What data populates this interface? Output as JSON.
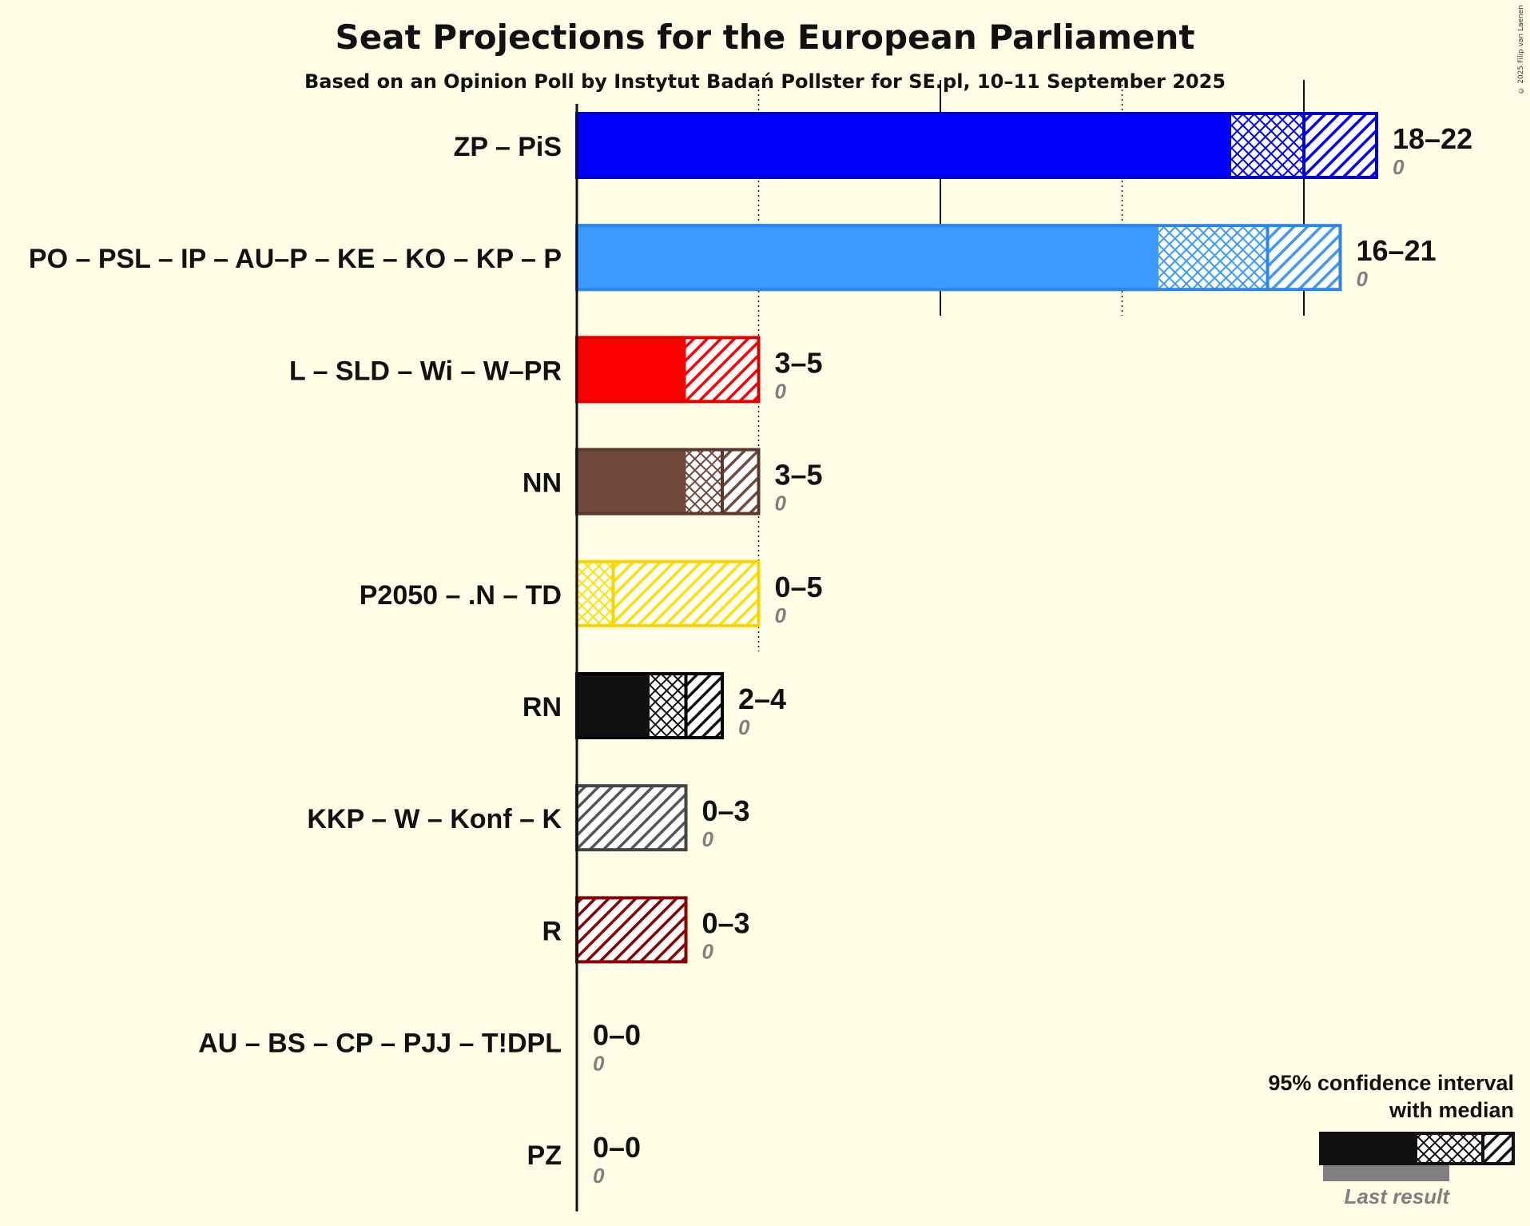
{
  "title": "Seat Projections for the European Parliament",
  "subtitle": "Based on an Opinion Poll by Instytut Badań Pollster for SE.pl, 10–11 September 2025",
  "copyright": "© 2025 Filip van Laenen",
  "legend": {
    "line1": "95% confidence interval",
    "line2": "with median",
    "last_result": "Last result"
  },
  "chart_data": {
    "type": "bar",
    "orientation": "horizontal",
    "title": "Seat Projections for the European Parliament",
    "subtitle": "Based on an Opinion Poll by Instytut Badań Pollster for SE.pl, 10–11 September 2025",
    "xlim": [
      0,
      25
    ],
    "gridlines": [
      5,
      10,
      15,
      20
    ],
    "parties": [
      {
        "name": "ZP – PiS",
        "low": 18,
        "median": 20,
        "high": 22,
        "range_label": "18–22",
        "last": 0,
        "last_label": "0",
        "color": "#0000FF",
        "border": "#0000CC"
      },
      {
        "name": "PO – PSL – IP – AU–P – KE – KO – KP – P",
        "low": 16,
        "median": 19,
        "high": 21,
        "range_label": "16–21",
        "last": 0,
        "last_label": "0",
        "color": "#3A9AFF",
        "border": "#2E85E6"
      },
      {
        "name": "L – SLD – Wi – W–PR",
        "low": 3,
        "median": 3,
        "high": 5,
        "range_label": "3–5",
        "last": 0,
        "last_label": "0",
        "color": "#FF0000",
        "border": "#DD0000"
      },
      {
        "name": "NN",
        "low": 3,
        "median": 4,
        "high": 5,
        "range_label": "3–5",
        "last": 0,
        "last_label": "0",
        "color": "#70483C",
        "border": "#5A382E"
      },
      {
        "name": "P2050 – .N – TD",
        "low": 0,
        "median": 1,
        "high": 5,
        "range_label": "0–5",
        "last": 0,
        "last_label": "0",
        "color": "#FFE000",
        "border": "#F5D400"
      },
      {
        "name": "RN",
        "low": 2,
        "median": 3,
        "high": 4,
        "range_label": "2–4",
        "last": 0,
        "last_label": "0",
        "color": "#111111",
        "border": "#000000"
      },
      {
        "name": "KKP – W – Konf – K",
        "low": 0,
        "median": 0,
        "high": 3,
        "range_label": "0–3",
        "last": 0,
        "last_label": "0",
        "color": "#555555",
        "border": "#444444"
      },
      {
        "name": "R",
        "low": 0,
        "median": 0,
        "high": 3,
        "range_label": "0–3",
        "last": 0,
        "last_label": "0",
        "color": "#8B0000",
        "border": "#8B0000"
      },
      {
        "name": "AU – BS – CP – PJJ – T!DPL",
        "low": 0,
        "median": 0,
        "high": 0,
        "range_label": "0–0",
        "last": 0,
        "last_label": "0",
        "color": "#888888",
        "border": "#666666"
      },
      {
        "name": "PZ",
        "low": 0,
        "median": 0,
        "high": 0,
        "range_label": "0–0",
        "last": 0,
        "last_label": "0",
        "color": "#888888",
        "border": "#666666"
      }
    ]
  }
}
